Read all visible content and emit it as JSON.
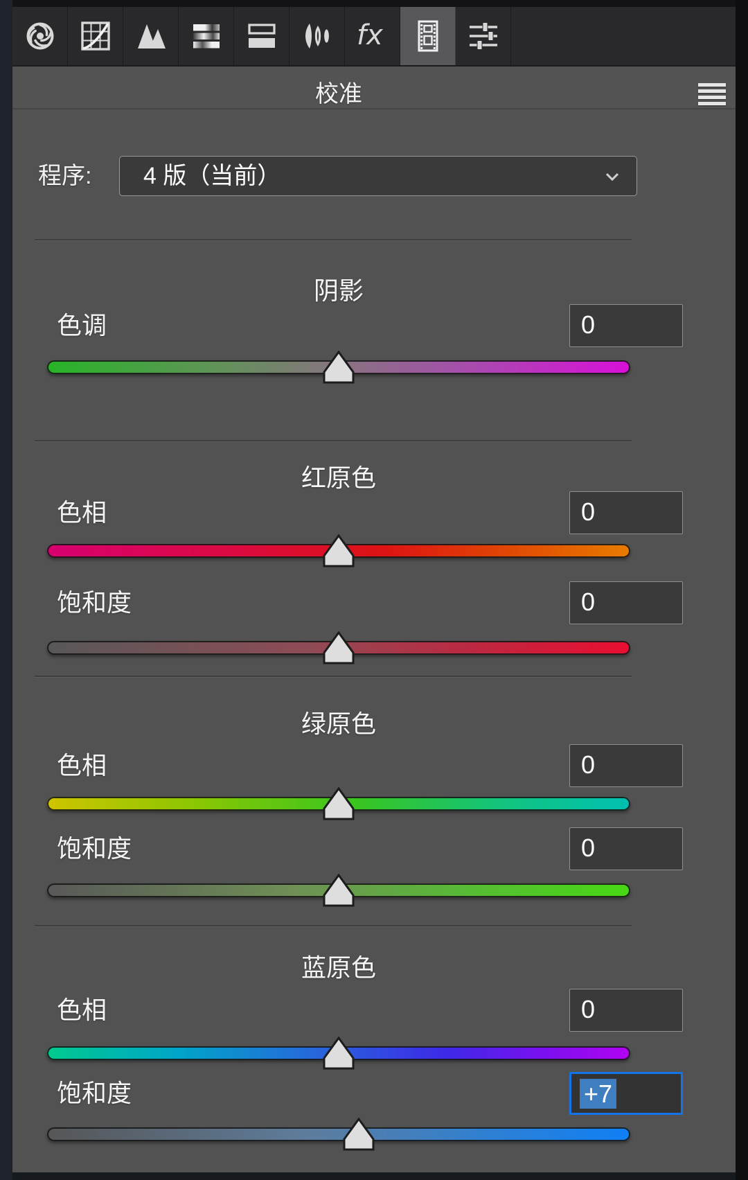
{
  "toolbar": {
    "tabs": [
      {
        "id": "basic",
        "icon": "aperture-icon",
        "active": false
      },
      {
        "id": "tone-curve",
        "icon": "tone-curve-icon",
        "active": false
      },
      {
        "id": "detail",
        "icon": "detail-icon",
        "active": false
      },
      {
        "id": "hsl-grayscale",
        "icon": "hsl-bars-icon",
        "active": false
      },
      {
        "id": "split-toning",
        "icon": "split-toning-icon",
        "active": false
      },
      {
        "id": "lens-corrections",
        "icon": "lens-icon",
        "active": false
      },
      {
        "id": "effects",
        "icon": "fx-icon",
        "label": "fx",
        "active": false
      },
      {
        "id": "camera-calibration",
        "icon": "film-strip-icon",
        "active": true
      },
      {
        "id": "presets",
        "icon": "sliders-icon",
        "active": false
      }
    ]
  },
  "header": {
    "title": "校准",
    "menu_icon": "hamburger-menu-icon"
  },
  "process": {
    "label": "程序:",
    "value": "4 版（当前）",
    "chevron_icon": "chevron-down-icon"
  },
  "sections": [
    {
      "title": "阴影",
      "rows": [
        {
          "label": "色调",
          "value": "0",
          "thumb_pct": 50,
          "focused": false,
          "gradient": "linear-gradient(90deg,#27b427 0%,#5f9457 28%,#87747f 50%,#a351a9 70%,#d90fd9 100%)"
        }
      ]
    },
    {
      "title": "红原色",
      "rows": [
        {
          "label": "色相",
          "value": "0",
          "thumb_pct": 50,
          "focused": false,
          "gradient": "linear-gradient(90deg,#d60070 0%,#dc0b3c 35%,#dd1313 58%,#e04a04 80%,#e87c00 100%)"
        },
        {
          "label": "饱和度",
          "value": "0",
          "thumb_pct": 50,
          "focused": false,
          "gradient": "linear-gradient(90deg,#585858 0%,#8f4b55 45%,#bb2941 72%,#ea0e31 100%)"
        }
      ]
    },
    {
      "title": "绿原色",
      "rows": [
        {
          "label": "色相",
          "value": "0",
          "thumb_pct": 50,
          "focused": false,
          "gradient": "linear-gradient(90deg,#cfc400 0%,#8cc703 25%,#3bc51d 52%,#12c47e 78%,#00bfb2 100%)"
        },
        {
          "label": "饱和度",
          "value": "0",
          "thumb_pct": 50,
          "focused": false,
          "gradient": "linear-gradient(90deg,#585858 0%,#6f8f56 42%,#57bb35 72%,#47d814 100%)"
        }
      ]
    },
    {
      "title": "蓝原色",
      "rows": [
        {
          "label": "色相",
          "value": "0",
          "thumb_pct": 50,
          "focused": false,
          "gradient": "linear-gradient(90deg,#00ca8e 0%,#00a6c8 22%,#2a62dd 48%,#3c2ae8 68%,#7a10ee 85%,#b303f2 100%)"
        },
        {
          "label": "饱和度",
          "value": "+7",
          "thumb_pct": 53.5,
          "focused": true,
          "gradient": "linear-gradient(90deg,#565656 0%,#5e7d9d 45%,#2f80d2 75%,#0f80f5 100%)"
        }
      ]
    }
  ],
  "colors": {
    "panel_bg": "#525252",
    "toolbar_bg": "#29292b",
    "active_tab_bg": "#58585c",
    "box_bg": "#3a3a3a",
    "box_border": "#8f8f8f",
    "focus_border": "#1473e6",
    "selection_bg": "#3f7ec0",
    "icon": "#d8d8d8",
    "divider": "#3e3e3e"
  }
}
